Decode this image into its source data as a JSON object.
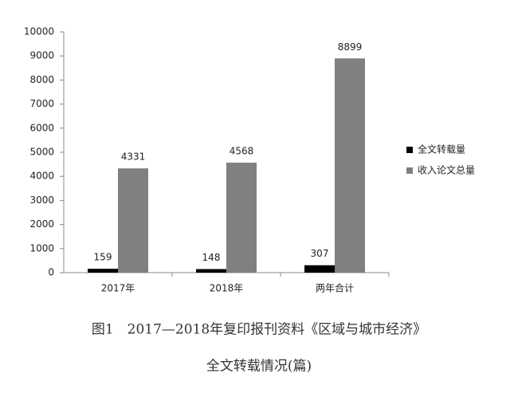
{
  "chart_data": {
    "type": "bar",
    "title": "图1　2017—2018年复印报刊资料《区域与城市经济》",
    "subtitle": "全文转载情况(篇)",
    "categories": [
      "2017年",
      "2018年",
      "两年合计"
    ],
    "series": [
      {
        "name": "全文转载量",
        "color": "#000000",
        "values": [
          159,
          148,
          307
        ]
      },
      {
        "name": "收入论文总量",
        "color": "#808080",
        "values": [
          4331,
          4568,
          8899
        ]
      }
    ],
    "ylim": [
      0,
      10000
    ],
    "yticks": [
      0,
      1000,
      2000,
      3000,
      4000,
      5000,
      6000,
      7000,
      8000,
      9000,
      10000
    ],
    "legend": "right"
  }
}
